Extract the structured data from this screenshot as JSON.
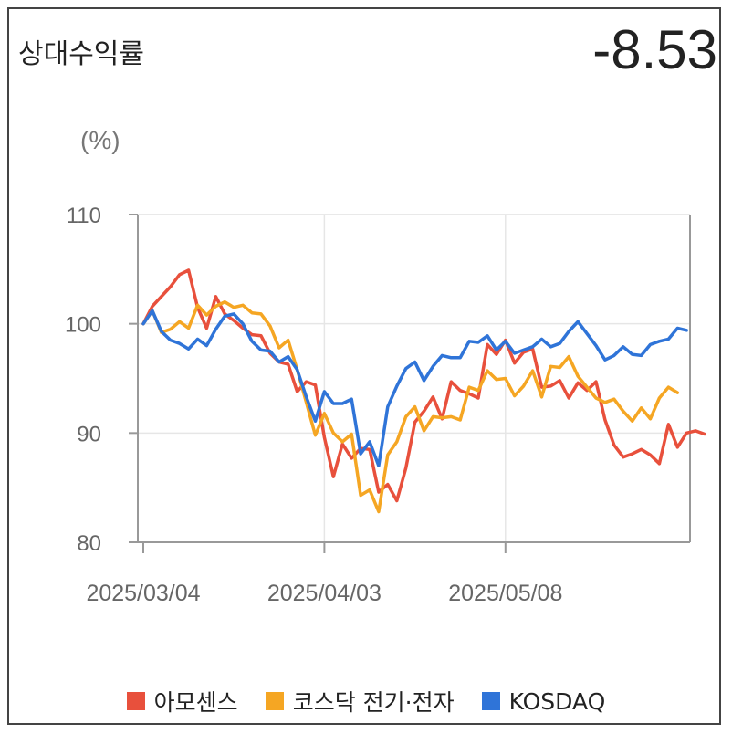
{
  "header": {
    "title": "상대수익률",
    "value": "-8.53"
  },
  "chart_data": {
    "type": "line",
    "unit_label": "(%)",
    "ylim": [
      80,
      110
    ],
    "yticks": [
      "110",
      "100",
      "90",
      "80"
    ],
    "xticks": [
      {
        "label": "2025/03/04",
        "index": 0
      },
      {
        "label": "2025/04/03",
        "index": 20
      },
      {
        "label": "2025/05/08",
        "index": 40
      }
    ],
    "legend_position": "bottom",
    "series": [
      {
        "name": "아모센스",
        "color": "#E8503C",
        "values": [
          100.0,
          101.6,
          102.5,
          103.4,
          104.5,
          104.9,
          101.5,
          99.6,
          102.5,
          100.9,
          100.3,
          99.6,
          99.0,
          98.9,
          97.3,
          96.5,
          96.3,
          93.8,
          94.7,
          94.4,
          89.6,
          86.0,
          89.0,
          87.7,
          88.6,
          88.5,
          84.6,
          85.3,
          83.8,
          86.8,
          91.0,
          92.0,
          93.3,
          91.3,
          94.7,
          93.9,
          93.6,
          93.2,
          98.1,
          97.2,
          98.5,
          96.4,
          97.4,
          97.7,
          94.2,
          94.3,
          94.8,
          93.2,
          94.6,
          93.9,
          94.7,
          91.2,
          88.9,
          87.8,
          88.1,
          88.5,
          88.0,
          87.2,
          90.8,
          88.7,
          90.0,
          90.2,
          89.9
        ]
      },
      {
        "name": "코스닥 전기·전자",
        "color": "#F5A623",
        "values": [
          100.0,
          101.2,
          99.2,
          99.5,
          100.2,
          99.6,
          101.7,
          100.8,
          101.6,
          102.0,
          101.5,
          101.7,
          101.0,
          100.9,
          99.8,
          97.8,
          98.5,
          95.8,
          92.8,
          89.8,
          91.8,
          90.0,
          89.2,
          89.9,
          84.3,
          84.8,
          82.8,
          88.0,
          89.2,
          91.5,
          92.4,
          90.2,
          91.5,
          91.4,
          91.5,
          91.2,
          94.2,
          93.9,
          95.7,
          94.9,
          95.0,
          93.4,
          94.3,
          95.7,
          93.3,
          96.1,
          96.0,
          97.0,
          95.2,
          94.2,
          93.2,
          92.8,
          93.1,
          92.0,
          91.1,
          92.3,
          91.3,
          93.2,
          94.2,
          93.7
        ]
      },
      {
        "name": "KOSDAQ",
        "color": "#2F74D8",
        "values": [
          100.0,
          101.2,
          99.3,
          98.5,
          98.2,
          97.7,
          98.6,
          98.0,
          99.5,
          100.7,
          100.9,
          100.0,
          98.4,
          97.6,
          97.5,
          96.5,
          97.0,
          95.8,
          93.3,
          91.1,
          93.8,
          92.7,
          92.7,
          93.1,
          88.1,
          89.2,
          87.0,
          92.4,
          94.3,
          95.9,
          96.5,
          94.8,
          96.1,
          97.1,
          96.9,
          96.9,
          98.4,
          98.3,
          98.9,
          97.6,
          98.4,
          97.3,
          97.6,
          97.9,
          98.6,
          97.9,
          98.2,
          99.3,
          100.2,
          99.1,
          98.0,
          96.7,
          97.1,
          97.9,
          97.2,
          97.1,
          98.1,
          98.4,
          98.6,
          99.6,
          99.4
        ]
      }
    ]
  }
}
